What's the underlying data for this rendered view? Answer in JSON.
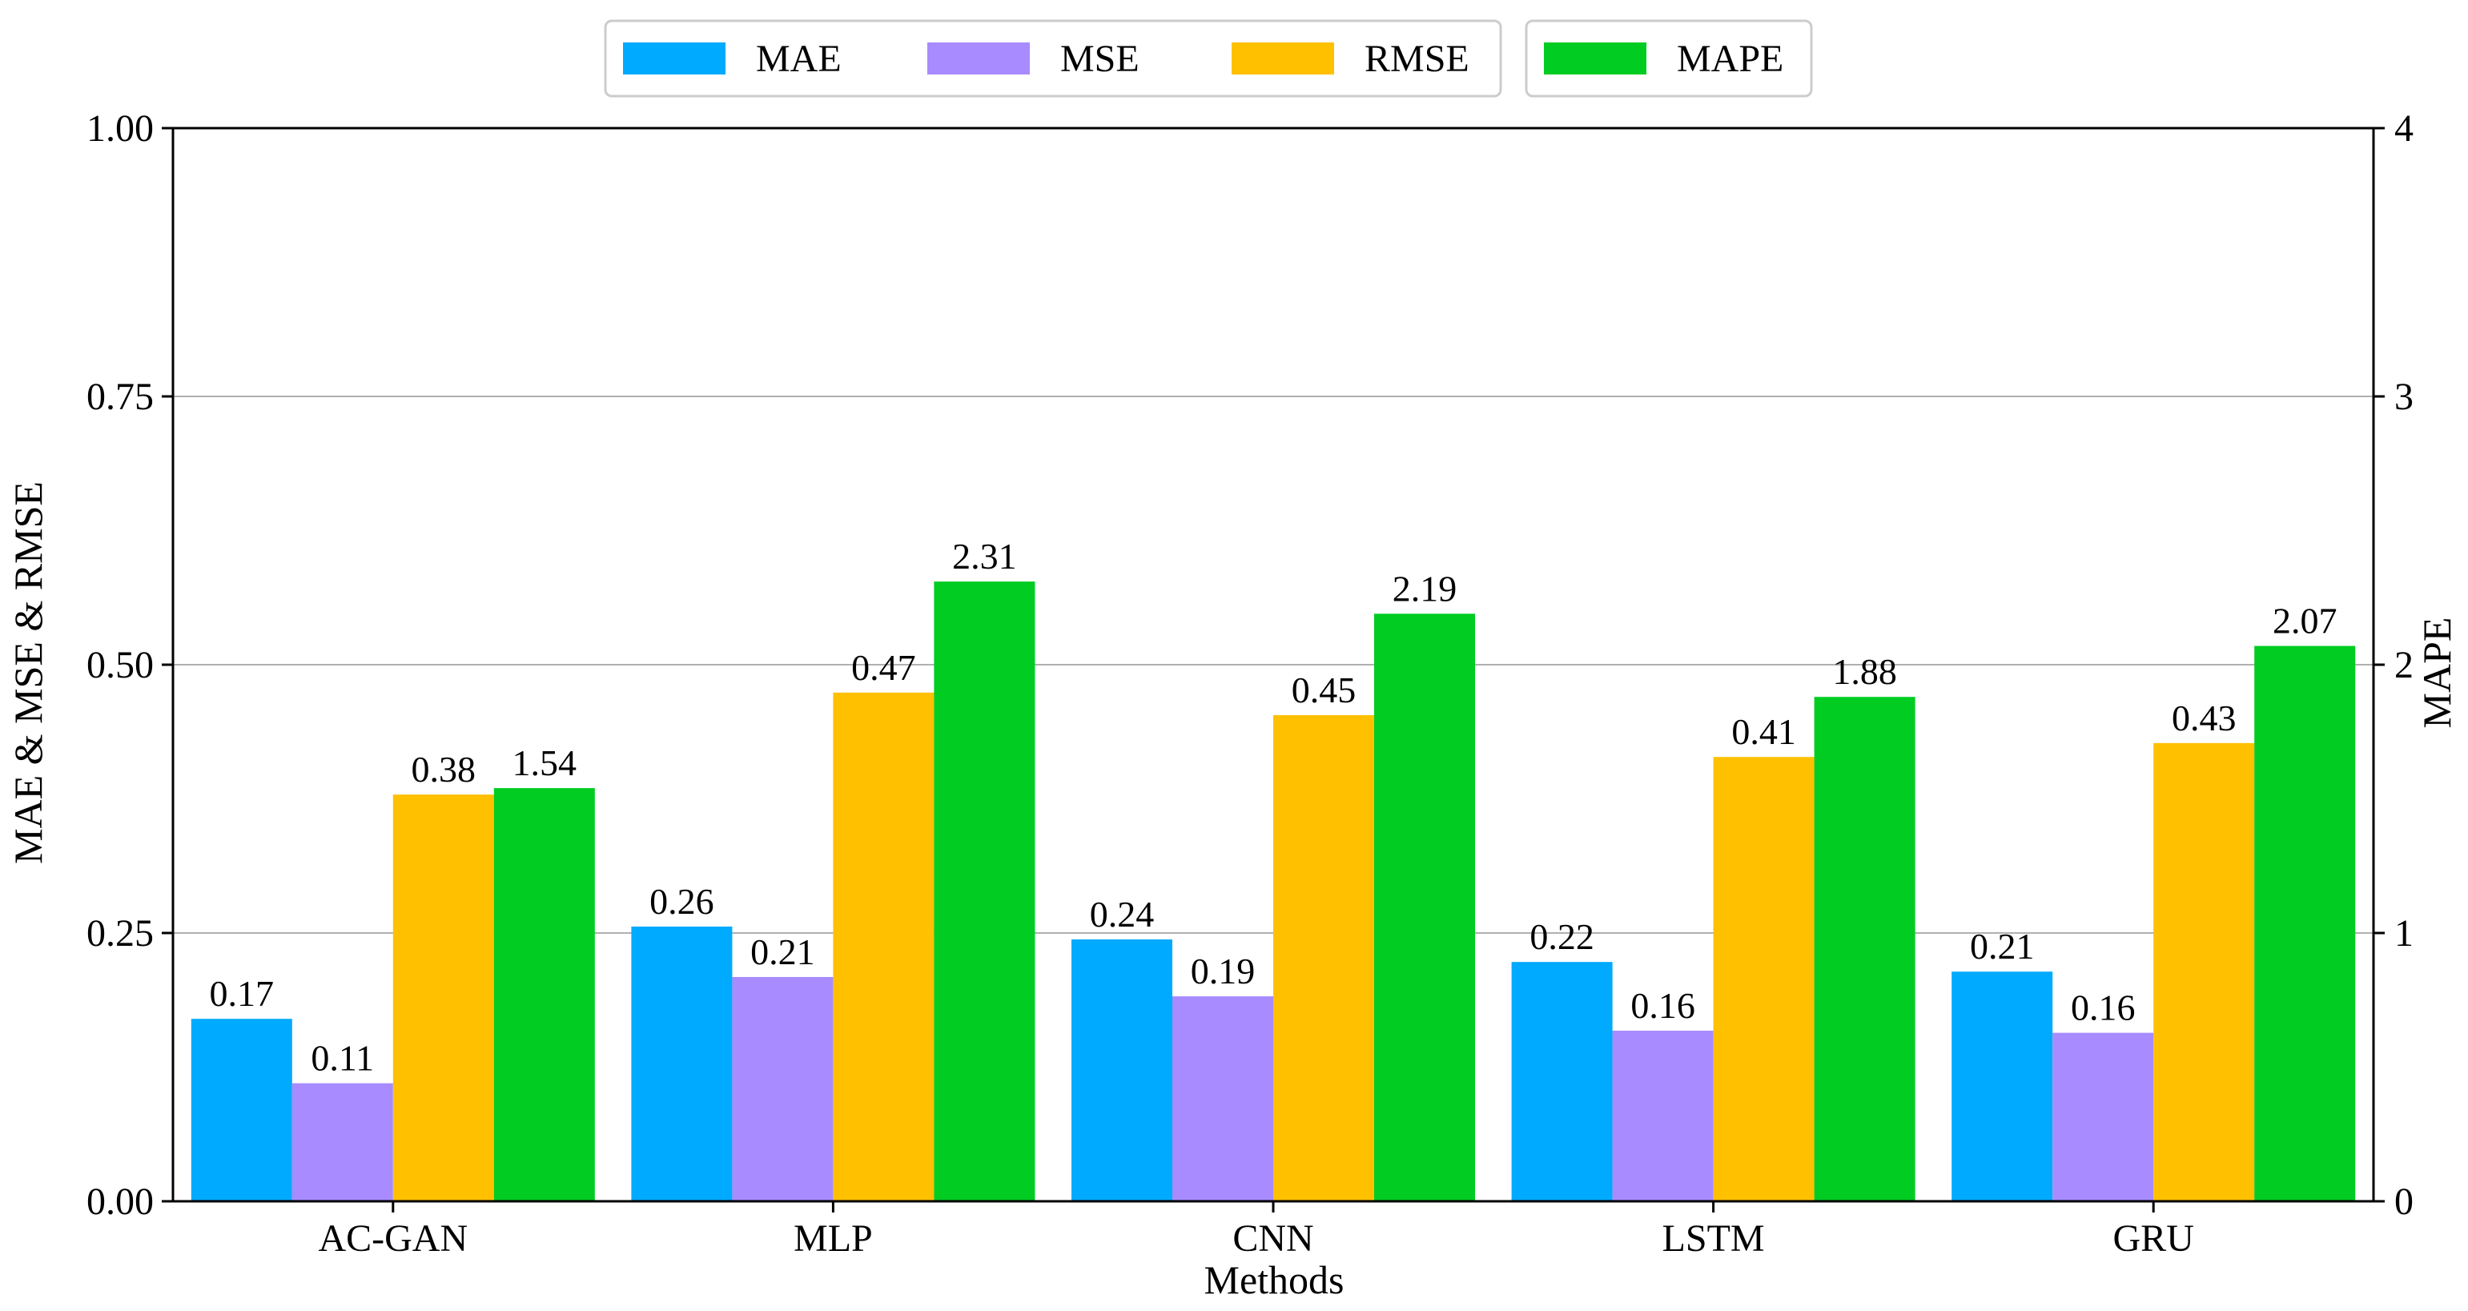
{
  "chart_data": {
    "type": "bar",
    "title": "",
    "xlabel": "Methods",
    "ylabel": "MAE & MSE & RMSE",
    "y2label": "MAPE",
    "categories": [
      "AC-GAN",
      "MLP",
      "CNN",
      "LSTM",
      "GRU"
    ],
    "ylim": [
      0,
      1.0
    ],
    "y2lim": [
      0,
      4
    ],
    "yticks": [
      "0.00",
      "0.25",
      "0.50",
      "0.75",
      "1.00"
    ],
    "y2ticks": [
      "0",
      "1",
      "2",
      "3",
      "4"
    ],
    "grid": true,
    "legend_position": "top-center",
    "series": [
      {
        "name": "MAE",
        "axis": "left",
        "color": "#00aaff",
        "values": [
          0.17,
          0.256,
          0.244,
          0.223,
          0.214
        ],
        "labels": [
          "0.17",
          "0.26",
          "0.24",
          "0.22",
          "0.21"
        ]
      },
      {
        "name": "MSE",
        "axis": "left",
        "color": "#a78bff",
        "values": [
          0.11,
          0.209,
          0.191,
          0.159,
          0.157
        ],
        "labels": [
          "0.11",
          "0.21",
          "0.19",
          "0.16",
          "0.16"
        ]
      },
      {
        "name": "RMSE",
        "axis": "left",
        "color": "#ffc000",
        "values": [
          0.379,
          0.474,
          0.453,
          0.414,
          0.427
        ],
        "labels": [
          "0.38",
          "0.47",
          "0.45",
          "0.41",
          "0.43"
        ]
      },
      {
        "name": "MAPE",
        "axis": "right",
        "color": "#00cc22",
        "values": [
          1.54,
          2.31,
          2.19,
          1.88,
          2.07
        ],
        "labels": [
          "1.54",
          "2.31",
          "2.19",
          "1.88",
          "2.07"
        ]
      }
    ]
  }
}
